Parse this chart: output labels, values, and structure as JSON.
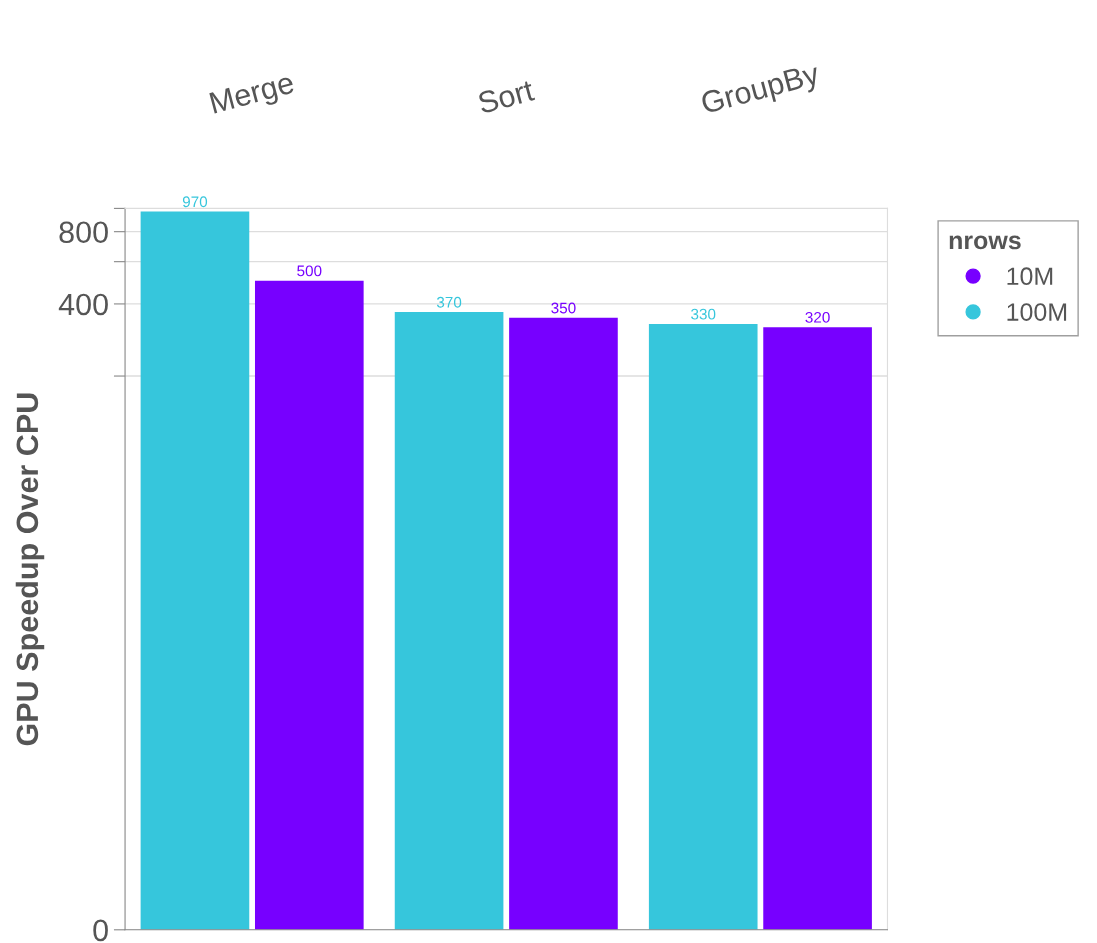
{
  "chart_data": {
    "type": "bar",
    "ylabel": "GPU Speedup Over CPU",
    "categories": [
      "Merge",
      "Sort",
      "GroupBy"
    ],
    "log": "y",
    "ylim": [
      0,
      1000
    ],
    "yticks": [
      0,
      {
        "value": 200,
        "label": null
      },
      400,
      {
        "value": 600,
        "label": null
      },
      800,
      {
        "value": 1000,
        "label": null
      }
    ],
    "grid": "y",
    "data_labels": true,
    "legend": "right",
    "legend_title": "nrows",
    "series": [
      {
        "name": "100M",
        "color": "#36c6dc",
        "values": [
          970,
          370,
          330
        ]
      },
      {
        "name": "10M",
        "color": "#7700ff",
        "values": [
          500,
          350,
          320
        ]
      }
    ]
  }
}
